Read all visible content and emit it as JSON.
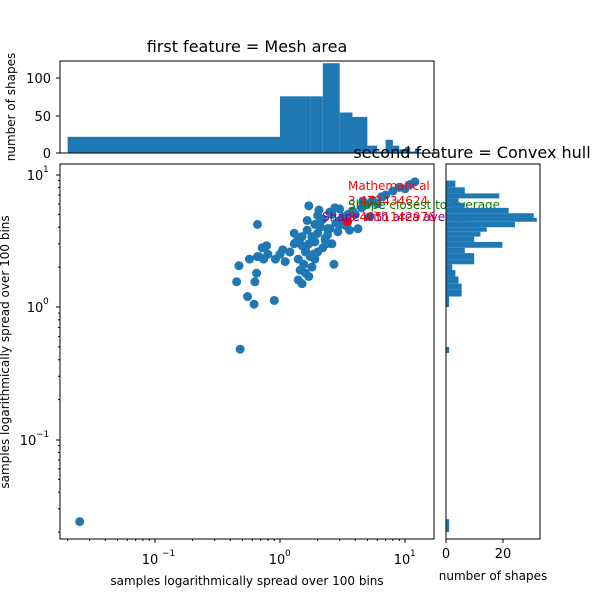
{
  "colors": {
    "series": "#1f77b4",
    "mean_point": "#ff0000",
    "mathematical_label": "#ff0000",
    "closest_label": "#008000",
    "area_label": "#800080",
    "axes": "#000000"
  },
  "top_panel": {
    "title": "first feature = Mesh area",
    "ylabel": "number of shapes",
    "yticks": [
      "0",
      "50",
      "100"
    ]
  },
  "main_panel": {
    "xlabel": "samples logarithmically spread over 100 bins",
    "ylabel": "samples logarithmically spread over 100 bins",
    "xticks": [
      "10",
      "10",
      "10"
    ],
    "xtick_exps": [
      "−1",
      "0",
      "1"
    ],
    "yticks": [
      "10",
      "10",
      "10"
    ],
    "ytick_exps": [
      "−1",
      "0",
      "1"
    ]
  },
  "right_panel": {
    "title": "second feature = Convex hull",
    "xlabel": "number of shapes",
    "xticks": [
      "0",
      "20"
    ]
  },
  "annotations": {
    "mathematical": "Mathematical",
    "mathematical_value": "3.473434624",
    "closest": "Shape closest to average",
    "area": "Shape with area average",
    "area_value": "3.4051142976"
  },
  "chart_data": {
    "type": "scatter",
    "x_scale": "log",
    "y_scale": "log",
    "xlim": [
      0.02,
      15
    ],
    "ylim": [
      0.02,
      11
    ],
    "series": [
      {
        "x": [
          0.025,
          0.48,
          0.45,
          0.47,
          0.55,
          0.57,
          0.62,
          0.63,
          0.65,
          0.66,
          0.66,
          0.72,
          0.74,
          0.78,
          0.8,
          0.9,
          0.92,
          0.68,
          1.0,
          1.05,
          1.1,
          1.2,
          1.3,
          1.35,
          1.4,
          1.4,
          1.45,
          1.5,
          1.5,
          1.55,
          1.6,
          1.6,
          1.65,
          1.7,
          1.7,
          1.75,
          1.8,
          1.85,
          1.9,
          1.9,
          2.0,
          2.0,
          2.1,
          2.2,
          2.3,
          2.4,
          2.5,
          2.6,
          2.8,
          3.0,
          3.2,
          3.5,
          3.8,
          4.0,
          4.5,
          5.0,
          5.5,
          6.0,
          7.0,
          8.0,
          9.0,
          10.0,
          11.0,
          12.0,
          2.2,
          2.6,
          3.0,
          1.3,
          1.7,
          2.0,
          2.4,
          1.5,
          1.8,
          2.1,
          2.5,
          2.9,
          3.4,
          4.2,
          5.2,
          1.6,
          1.9,
          2.3,
          2.7,
          3.1,
          3.6,
          1.45,
          1.65,
          1.85,
          2.05,
          2.35,
          2.75,
          3.3,
          4.6,
          6.5
        ],
        "y": [
          0.024,
          0.48,
          1.55,
          2.05,
          1.2,
          2.3,
          1.05,
          1.55,
          1.8,
          4.2,
          2.4,
          2.8,
          2.3,
          2.9,
          2.5,
          1.12,
          2.3,
          2.4,
          2.5,
          2.7,
          2.2,
          2.6,
          3.0,
          3.1,
          2.3,
          1.6,
          1.9,
          1.5,
          3.4,
          2.1,
          1.8,
          2.6,
          3.8,
          1.7,
          3.0,
          2.4,
          2.0,
          3.3,
          2.3,
          4.2,
          2.6,
          3.6,
          4.0,
          2.8,
          3.2,
          3.5,
          3.9,
          3.0,
          4.3,
          4.5,
          4.8,
          5.0,
          5.3,
          5.0,
          5.6,
          6.0,
          6.4,
          6.0,
          7.0,
          7.5,
          8.0,
          7.8,
          8.4,
          8.8,
          4.6,
          5.0,
          5.5,
          3.6,
          5.8,
          4.9,
          3.9,
          2.9,
          3.4,
          4.4,
          5.2,
          3.7,
          4.1,
          3.9,
          4.8,
          2.7,
          3.1,
          3.3,
          2.1,
          4.2,
          3.8,
          3.3,
          4.5,
          2.5,
          5.4,
          3.0,
          5.6,
          4.6,
          6.3,
          6.8
        ],
        "color": "#1f77b4"
      }
    ],
    "highlight": {
      "x": 3.47,
      "y": 4.4,
      "color": "#ff0000"
    },
    "top_histogram": {
      "ylim": [
        0,
        125
      ],
      "bins_x": [
        0.02,
        1.0,
        1.5,
        1.75,
        2.2,
        3.0,
        3.8,
        5.0,
        6.0,
        7.0,
        8.0,
        9.0,
        10.0,
        11.0,
        12.0,
        13.0
      ],
      "counts": [
        22,
        77,
        77,
        77,
        122,
        55,
        49,
        10,
        2,
        18,
        10,
        5,
        8,
        2,
        6
      ]
    },
    "right_histogram": {
      "xlim": [
        0,
        30
      ],
      "bins": [
        {
          "lo": 8.0,
          "hi": 9.0,
          "count": 3
        },
        {
          "lo": 7.2,
          "hi": 8.0,
          "count": 6
        },
        {
          "lo": 6.6,
          "hi": 7.2,
          "count": 17
        },
        {
          "lo": 6.1,
          "hi": 6.6,
          "count": 4
        },
        {
          "lo": 5.6,
          "hi": 6.1,
          "count": 6
        },
        {
          "lo": 5.1,
          "hi": 5.6,
          "count": 20
        },
        {
          "lo": 4.7,
          "hi": 5.1,
          "count": 28
        },
        {
          "lo": 4.4,
          "hi": 4.7,
          "count": 29
        },
        {
          "lo": 4.0,
          "hi": 4.4,
          "count": 22
        },
        {
          "lo": 3.7,
          "hi": 4.0,
          "count": 13
        },
        {
          "lo": 3.4,
          "hi": 3.7,
          "count": 11
        },
        {
          "lo": 3.1,
          "hi": 3.4,
          "count": 9
        },
        {
          "lo": 2.8,
          "hi": 3.1,
          "count": 18
        },
        {
          "lo": 2.55,
          "hi": 2.8,
          "count": 6
        },
        {
          "lo": 2.3,
          "hi": 2.55,
          "count": 9
        },
        {
          "lo": 2.1,
          "hi": 2.3,
          "count": 9
        },
        {
          "lo": 1.9,
          "hi": 2.1,
          "count": 2
        },
        {
          "lo": 1.7,
          "hi": 1.9,
          "count": 3
        },
        {
          "lo": 1.5,
          "hi": 1.7,
          "count": 4
        },
        {
          "lo": 1.35,
          "hi": 1.5,
          "count": 5
        },
        {
          "lo": 1.2,
          "hi": 1.35,
          "count": 5
        },
        {
          "lo": 1.0,
          "hi": 1.2,
          "count": 1
        },
        {
          "lo": 0.45,
          "hi": 0.5,
          "count": 1
        },
        {
          "lo": 0.02,
          "hi": 0.025,
          "count": 1
        }
      ]
    }
  }
}
